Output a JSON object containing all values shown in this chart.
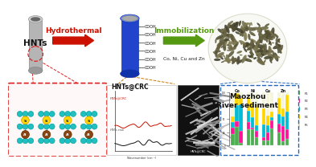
{
  "bg_color": "#ffffff",
  "arrow1_text": "Hydrothermal",
  "arrow2_text": "Immobilization",
  "arrow2_sub": "Co, Ni, Cu and Zn",
  "label_hnts": "HNTs",
  "label_hntscrc": "HNTs@CRC",
  "label_river": "Maozhou\nRiver sediment",
  "cooh_labels": [
    "COOH",
    "COOH",
    "COOH",
    "COOH",
    "COOH",
    "COOH"
  ],
  "bar_elements": [
    "Co",
    "Ni",
    "Cu",
    "Zn"
  ],
  "bar_colors_stacked": [
    "#4CAF50",
    "#FF1499",
    "#00BCD4",
    "#FFD700",
    "#F5F5DC"
  ],
  "bar_legend_labels": [
    "F1",
    "F2",
    "F3",
    "F4",
    "F5"
  ],
  "gray_tube_color": "#b8b8b8",
  "blue_tube_color": "#2244cc",
  "red_arrow_color": "#cc1100",
  "green_arrow_color": "#559911",
  "red_box_border": "#dd2222",
  "blue_box_border": "#2266bb",
  "orange_line_color": "#cc7700",
  "cooh_line_color": "#333333",
  "sem_bg_color": "#111111"
}
